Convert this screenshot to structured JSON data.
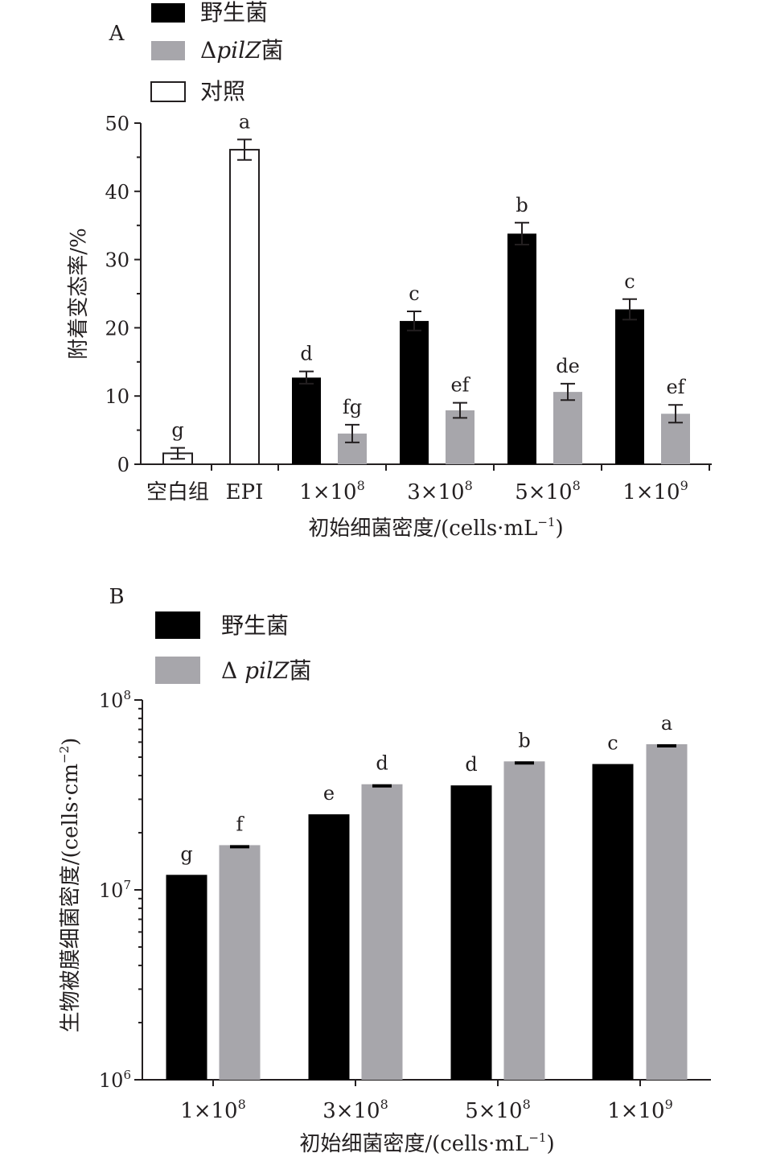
{
  "colors": {
    "wild": "#000000",
    "mutant": "#a7a6ab",
    "control": "#ffffff",
    "outline": "#231f20"
  },
  "chart_data": [
    {
      "panel_label": "A",
      "type": "bar",
      "categories": [
        "空白组",
        "EPI",
        "1×10^8",
        "3×10^8",
        "5×10^8",
        "1×10^9"
      ],
      "category_labels": [
        {
          "base": "空白组",
          "exp": ""
        },
        {
          "base": "EPI",
          "exp": ""
        },
        {
          "base": "1×10",
          "exp": "8"
        },
        {
          "base": "3×10",
          "exp": "8"
        },
        {
          "base": "5×10",
          "exp": "8"
        },
        {
          "base": "1×10",
          "exp": "9"
        }
      ],
      "series": [
        {
          "name": "野生菌",
          "key": "wild",
          "values": [
            null,
            null,
            12.7,
            21.0,
            33.8,
            22.7
          ],
          "errors": [
            null,
            null,
            0.9,
            1.4,
            1.6,
            1.5
          ],
          "letters": [
            "",
            "",
            "d",
            "c",
            "b",
            "c"
          ]
        },
        {
          "name": "ΔpilZ菌",
          "key": "mutant",
          "values": [
            null,
            null,
            4.5,
            7.9,
            10.6,
            7.4
          ],
          "errors": [
            null,
            null,
            1.3,
            1.1,
            1.2,
            1.3
          ],
          "letters": [
            "",
            "",
            "fg",
            "ef",
            "de",
            "ef"
          ]
        },
        {
          "name": "对照",
          "key": "control",
          "values": [
            1.6,
            46.1,
            null,
            null,
            null,
            null
          ],
          "errors": [
            0.8,
            1.5,
            null,
            null,
            null,
            null
          ],
          "letters": [
            "g",
            "a",
            "",
            "",
            "",
            ""
          ]
        }
      ],
      "legend": [
        {
          "label_main": "野生菌",
          "label_italic": "",
          "prefix": "",
          "key": "wild"
        },
        {
          "label_main": "菌",
          "label_italic": "pilZ",
          "prefix": "Δ",
          "key": "mutant"
        },
        {
          "label_main": "对照",
          "label_italic": "",
          "prefix": "",
          "key": "control"
        }
      ],
      "xlabel": {
        "main": "初始细菌密度/(cells·mL",
        "sup": "−1",
        "tail": ")"
      },
      "ylabel": "附着变态率/%",
      "ylim": [
        0,
        50
      ],
      "yticks": [
        0,
        10,
        20,
        30,
        40,
        50
      ],
      "scale": "linear",
      "legend_position": "top-left",
      "grid": false
    },
    {
      "panel_label": "B",
      "type": "bar",
      "categories": [
        "1×10^8",
        "3×10^8",
        "5×10^8",
        "1×10^9"
      ],
      "category_labels": [
        {
          "base": "1×10",
          "exp": "8"
        },
        {
          "base": "3×10",
          "exp": "8"
        },
        {
          "base": "5×10",
          "exp": "8"
        },
        {
          "base": "1×10",
          "exp": "9"
        }
      ],
      "series": [
        {
          "name": "野生菌",
          "key": "wild",
          "values": [
            12000000,
            25000000,
            35500000,
            46000000
          ],
          "letters": [
            "g",
            "e",
            "d",
            "c"
          ]
        },
        {
          "name": "ΔpilZ菌",
          "key": "mutant",
          "values": [
            17200000,
            36000000,
            47500000,
            58500000
          ],
          "letters": [
            "f",
            "d",
            "b",
            "a"
          ]
        }
      ],
      "legend": [
        {
          "label_main": "野生菌",
          "label_italic": "",
          "prefix": "",
          "key": "wild"
        },
        {
          "label_main": "菌",
          "label_italic": "pilZ",
          "prefix": "Δ ",
          "key": "mutant"
        }
      ],
      "xlabel": {
        "main": "初始细菌密度/(cells·mL",
        "sup": "−1",
        "tail": ")"
      },
      "ylabel": {
        "main": "生物被膜细菌密度/(cells·cm",
        "sup": "−2",
        "tail": ")"
      },
      "ylim": [
        1000000,
        100000000
      ],
      "yticks": [
        {
          "base": "10",
          "exp": "6"
        },
        {
          "base": "10",
          "exp": "7"
        },
        {
          "base": "10",
          "exp": "8"
        }
      ],
      "scale": "log",
      "legend_position": "top-left",
      "grid": false
    }
  ]
}
